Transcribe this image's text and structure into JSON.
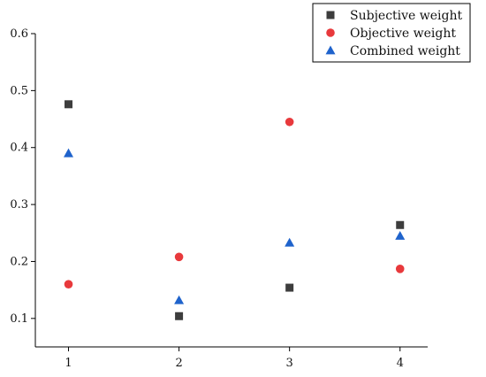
{
  "chart_data": {
    "type": "scatter",
    "x_ticks": [
      1,
      2,
      3,
      4
    ],
    "y_ticks": [
      0.1,
      0.2,
      0.3,
      0.4,
      0.5,
      0.6
    ],
    "xlim": [
      0.7,
      4.25
    ],
    "ylim": [
      0.05,
      0.6
    ],
    "grid": false,
    "legend_position": "top-right",
    "series": [
      {
        "name": "Subjective weight",
        "marker": "square",
        "color": "#3d3d3d",
        "x": [
          1,
          2,
          3,
          4
        ],
        "y": [
          0.476,
          0.104,
          0.154,
          0.264
        ]
      },
      {
        "name": "Objective weight",
        "marker": "circle",
        "color": "#e8393c",
        "x": [
          1,
          2,
          3,
          4
        ],
        "y": [
          0.16,
          0.208,
          0.445,
          0.187
        ]
      },
      {
        "name": "Combined weight",
        "marker": "triangle",
        "color": "#1f63cc",
        "x": [
          1,
          2,
          3,
          4
        ],
        "y": [
          0.39,
          0.132,
          0.233,
          0.245
        ]
      }
    ]
  }
}
